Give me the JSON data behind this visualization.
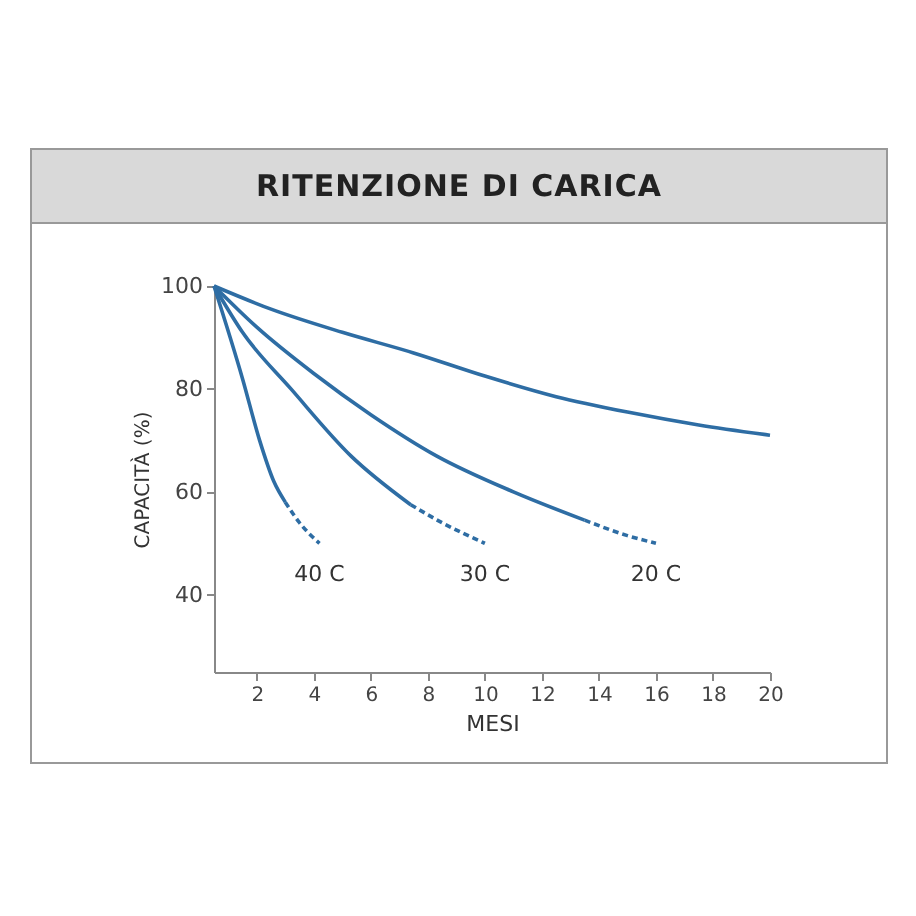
{
  "chart_data": {
    "type": "line",
    "title": "RITENZIONE DI CARICA",
    "xlabel": "MESI",
    "ylabel": "CAPACITÀ (%)",
    "xlim": [
      0.5,
      20
    ],
    "xticks": [
      2,
      4,
      6,
      8,
      10,
      12,
      14,
      16,
      18,
      20
    ],
    "ylim": [
      25,
      100
    ],
    "yticks": [
      40,
      60,
      80,
      100
    ],
    "series": [
      {
        "color": "#2e6da4",
        "line_style": "solid",
        "x": [
          0.5,
          2.5,
          5,
          7.5,
          10,
          12.5,
          15,
          17.5,
          20
        ],
        "values": [
          100,
          95.5,
          91,
          87,
          82.5,
          78.5,
          75.5,
          73,
          71
        ]
      },
      {
        "color": "#2e6da4",
        "line_style": "solid",
        "x": [
          0.5,
          2,
          4,
          6,
          8.3,
          11,
          13.5
        ],
        "values": [
          100,
          92,
          83,
          75,
          67,
          60,
          54.5
        ]
      },
      {
        "name": "20 C",
        "color": "#2e6da4",
        "line_style": "dashed",
        "x": [
          13.5,
          15,
          16
        ],
        "values": [
          54.5,
          51.5,
          50
        ]
      },
      {
        "color": "#2e6da4",
        "line_style": "solid",
        "x": [
          0.5,
          1.5,
          3.2,
          5.3,
          7.4
        ],
        "values": [
          100,
          91,
          80,
          67,
          57.5
        ]
      },
      {
        "name": "30 C",
        "color": "#2e6da4",
        "line_style": "dashed",
        "x": [
          7.4,
          8.5,
          10
        ],
        "values": [
          57.5,
          54,
          50
        ]
      },
      {
        "color": "#2e6da4",
        "line_style": "solid",
        "x": [
          0.5,
          1.5,
          2.1,
          2.6,
          3
        ],
        "values": [
          100,
          82,
          70,
          62,
          58
        ]
      },
      {
        "name": "40 C",
        "color": "#2e6da4",
        "line_style": "dashed",
        "x": [
          3,
          3.5,
          4.2
        ],
        "values": [
          58,
          54,
          50
        ]
      }
    ]
  }
}
